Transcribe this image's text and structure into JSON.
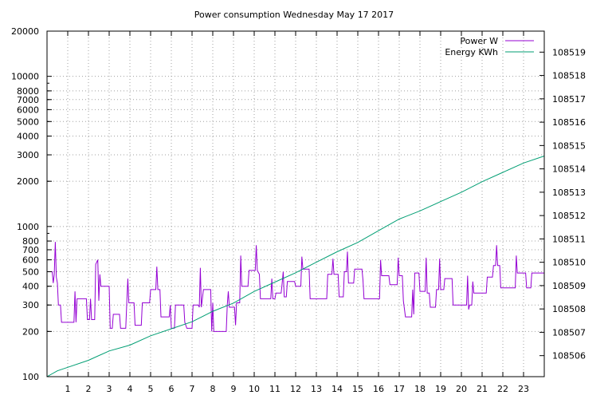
{
  "chart_data": {
    "type": "line",
    "title": "Power consumption Wednesday May 17 2017",
    "x": {
      "range": [
        0,
        24
      ],
      "ticks": [
        1,
        2,
        3,
        4,
        5,
        6,
        7,
        8,
        9,
        10,
        11,
        12,
        13,
        14,
        15,
        16,
        17,
        18,
        19,
        20,
        21,
        22,
        23
      ],
      "grid": true
    },
    "y_left": {
      "scale": "log",
      "range": [
        100,
        20000
      ],
      "ticks": [
        100,
        200,
        300,
        400,
        500,
        600,
        700,
        800,
        1000,
        2000,
        3000,
        4000,
        5000,
        6000,
        7000,
        8000,
        10000,
        20000
      ],
      "grid": true
    },
    "y_right": {
      "scale": "linear",
      "range": [
        108505.1,
        108519.9
      ],
      "ticks": [
        108506,
        108507,
        108508,
        108509,
        108510,
        108511,
        108512,
        108513,
        108514,
        108515,
        108516,
        108517,
        108518,
        108519
      ]
    },
    "legend": {
      "position": "top-right"
    },
    "series": [
      {
        "name": "Power W",
        "color": "#9400d3",
        "axis": "left",
        "points": [
          [
            0.0,
            500
          ],
          [
            0.25,
            500
          ],
          [
            0.3,
            420
          ],
          [
            0.35,
            480
          ],
          [
            0.4,
            790
          ],
          [
            0.45,
            460
          ],
          [
            0.5,
            420
          ],
          [
            0.55,
            300
          ],
          [
            0.65,
            300
          ],
          [
            0.7,
            230
          ],
          [
            1.3,
            230
          ],
          [
            1.35,
            370
          ],
          [
            1.4,
            230
          ],
          [
            1.45,
            330
          ],
          [
            1.9,
            330
          ],
          [
            1.95,
            240
          ],
          [
            2.05,
            240
          ],
          [
            2.1,
            330
          ],
          [
            2.15,
            240
          ],
          [
            2.3,
            240
          ],
          [
            2.35,
            560
          ],
          [
            2.45,
            600
          ],
          [
            2.5,
            320
          ],
          [
            2.55,
            480
          ],
          [
            2.6,
            400
          ],
          [
            3.0,
            400
          ],
          [
            3.05,
            210
          ],
          [
            3.15,
            210
          ],
          [
            3.2,
            260
          ],
          [
            3.5,
            260
          ],
          [
            3.55,
            210
          ],
          [
            3.8,
            210
          ],
          [
            3.85,
            310
          ],
          [
            3.9,
            450
          ],
          [
            3.95,
            310
          ],
          [
            4.2,
            310
          ],
          [
            4.25,
            220
          ],
          [
            4.55,
            220
          ],
          [
            4.6,
            310
          ],
          [
            4.95,
            310
          ],
          [
            5.0,
            380
          ],
          [
            5.25,
            380
          ],
          [
            5.3,
            540
          ],
          [
            5.35,
            380
          ],
          [
            5.45,
            380
          ],
          [
            5.5,
            250
          ],
          [
            5.9,
            250
          ],
          [
            5.95,
            300
          ],
          [
            6.0,
            210
          ],
          [
            6.15,
            210
          ],
          [
            6.2,
            300
          ],
          [
            6.55,
            300
          ],
          [
            6.6,
            300
          ],
          [
            6.65,
            230
          ],
          [
            6.75,
            210
          ],
          [
            7.0,
            210
          ],
          [
            7.05,
            300
          ],
          [
            7.3,
            300
          ],
          [
            7.35,
            290
          ],
          [
            7.4,
            530
          ],
          [
            7.45,
            290
          ],
          [
            7.55,
            380
          ],
          [
            7.9,
            380
          ],
          [
            7.95,
            200
          ],
          [
            8.0,
            310
          ],
          [
            8.05,
            200
          ],
          [
            8.65,
            200
          ],
          [
            8.7,
            300
          ],
          [
            8.75,
            370
          ],
          [
            8.8,
            290
          ],
          [
            9.05,
            290
          ],
          [
            9.1,
            220
          ],
          [
            9.15,
            310
          ],
          [
            9.3,
            310
          ],
          [
            9.35,
            640
          ],
          [
            9.4,
            400
          ],
          [
            9.7,
            400
          ],
          [
            9.75,
            510
          ],
          [
            10.05,
            510
          ],
          [
            10.1,
            750
          ],
          [
            10.15,
            510
          ],
          [
            10.25,
            480
          ],
          [
            10.3,
            330
          ],
          [
            10.8,
            330
          ],
          [
            10.85,
            450
          ],
          [
            10.9,
            330
          ],
          [
            11.0,
            330
          ],
          [
            11.05,
            360
          ],
          [
            11.3,
            360
          ],
          [
            11.35,
            420
          ],
          [
            11.4,
            500
          ],
          [
            11.45,
            340
          ],
          [
            11.55,
            340
          ],
          [
            11.6,
            430
          ],
          [
            11.95,
            430
          ],
          [
            12.0,
            400
          ],
          [
            12.25,
            400
          ],
          [
            12.3,
            630
          ],
          [
            12.35,
            520
          ],
          [
            12.65,
            520
          ],
          [
            12.7,
            330
          ],
          [
            13.5,
            330
          ],
          [
            13.55,
            480
          ],
          [
            13.75,
            480
          ],
          [
            13.8,
            610
          ],
          [
            13.85,
            480
          ],
          [
            14.05,
            480
          ],
          [
            14.1,
            340
          ],
          [
            14.3,
            340
          ],
          [
            14.35,
            500
          ],
          [
            14.45,
            500
          ],
          [
            14.5,
            680
          ],
          [
            14.55,
            420
          ],
          [
            14.8,
            420
          ],
          [
            14.85,
            520
          ],
          [
            15.2,
            520
          ],
          [
            15.25,
            440
          ],
          [
            15.3,
            330
          ],
          [
            16.05,
            330
          ],
          [
            16.1,
            600
          ],
          [
            16.15,
            470
          ],
          [
            16.5,
            470
          ],
          [
            16.55,
            410
          ],
          [
            16.9,
            410
          ],
          [
            16.95,
            620
          ],
          [
            17.0,
            470
          ],
          [
            17.15,
            470
          ],
          [
            17.2,
            320
          ],
          [
            17.3,
            250
          ],
          [
            17.6,
            250
          ],
          [
            17.65,
            380
          ],
          [
            17.7,
            260
          ],
          [
            17.75,
            490
          ],
          [
            17.95,
            490
          ],
          [
            18.0,
            370
          ],
          [
            18.25,
            370
          ],
          [
            18.3,
            620
          ],
          [
            18.35,
            360
          ],
          [
            18.45,
            360
          ],
          [
            18.5,
            290
          ],
          [
            18.75,
            290
          ],
          [
            18.8,
            380
          ],
          [
            18.9,
            380
          ],
          [
            18.95,
            610
          ],
          [
            19.0,
            380
          ],
          [
            19.15,
            380
          ],
          [
            19.2,
            450
          ],
          [
            19.55,
            450
          ],
          [
            19.6,
            300
          ],
          [
            20.25,
            300
          ],
          [
            20.3,
            470
          ],
          [
            20.35,
            280
          ],
          [
            20.4,
            300
          ],
          [
            20.5,
            300
          ],
          [
            20.55,
            430
          ],
          [
            20.6,
            360
          ],
          [
            21.2,
            360
          ],
          [
            21.25,
            460
          ],
          [
            21.5,
            460
          ],
          [
            21.55,
            550
          ],
          [
            21.65,
            550
          ],
          [
            21.7,
            750
          ],
          [
            21.75,
            550
          ],
          [
            21.85,
            550
          ],
          [
            21.9,
            390
          ],
          [
            22.6,
            390
          ],
          [
            22.65,
            640
          ],
          [
            22.7,
            490
          ],
          [
            23.1,
            490
          ],
          [
            23.15,
            390
          ],
          [
            23.35,
            390
          ],
          [
            23.4,
            490
          ],
          [
            24.0,
            490
          ]
        ]
      },
      {
        "name": "Energy KWh",
        "color": "#009e73",
        "axis": "right",
        "points": [
          [
            0.0,
            108505.1
          ],
          [
            0.5,
            108505.35
          ],
          [
            1.0,
            108505.5
          ],
          [
            2.0,
            108505.8
          ],
          [
            3.0,
            108506.2
          ],
          [
            4.0,
            108506.45
          ],
          [
            5.0,
            108506.85
          ],
          [
            6.0,
            108507.15
          ],
          [
            7.0,
            108507.45
          ],
          [
            8.0,
            108507.9
          ],
          [
            9.0,
            108508.25
          ],
          [
            10.0,
            108508.75
          ],
          [
            11.0,
            108509.15
          ],
          [
            12.0,
            108509.55
          ],
          [
            13.0,
            108510.0
          ],
          [
            14.0,
            108510.45
          ],
          [
            15.0,
            108510.85
          ],
          [
            16.0,
            108511.35
          ],
          [
            17.0,
            108511.85
          ],
          [
            18.0,
            108512.2
          ],
          [
            19.0,
            108512.6
          ],
          [
            20.0,
            108513.0
          ],
          [
            21.0,
            108513.45
          ],
          [
            22.0,
            108513.85
          ],
          [
            23.0,
            108514.25
          ],
          [
            24.0,
            108514.55
          ]
        ]
      }
    ]
  }
}
